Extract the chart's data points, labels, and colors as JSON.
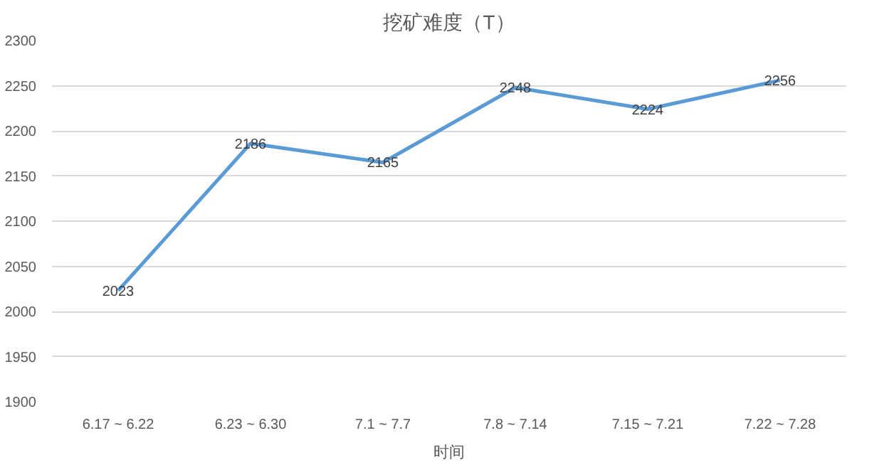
{
  "chart_data": {
    "type": "line",
    "title": "挖矿难度（T）",
    "xlabel": "时间",
    "categories": [
      "6.17 ~ 6.22",
      "6.23 ~ 6.30",
      "7.1 ~ 7.7",
      "7.8 ~ 7.14",
      "7.15 ~ 7.21",
      "7.22 ~ 7.28"
    ],
    "series": [
      {
        "color": "#5b9bd5",
        "values": [
          2023,
          2186,
          2165,
          2248,
          2224,
          2256
        ]
      }
    ],
    "ylim": [
      1900,
      2300
    ],
    "yticks": [
      1900,
      1950,
      2000,
      2050,
      2100,
      2150,
      2200,
      2250,
      2300
    ],
    "grid": "y",
    "data_labels": true,
    "marker": "none",
    "line_style": "solid"
  }
}
